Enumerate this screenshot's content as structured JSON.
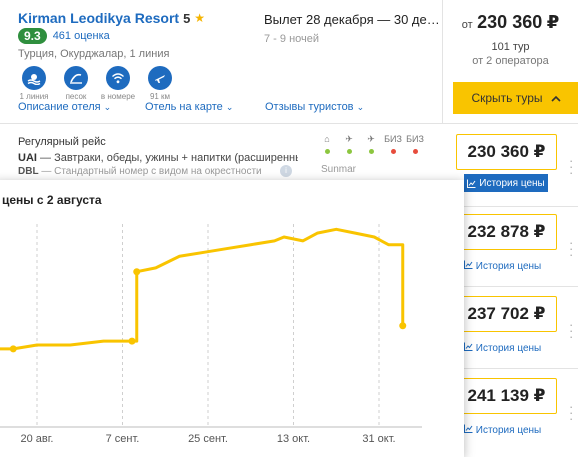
{
  "hotel": {
    "name": "Kirman Leodikya Resort",
    "stars": "5",
    "rating": "9.3",
    "rating_count": "461 оценка",
    "location": "Турция, Окурджалар, 1 линия",
    "amenities": [
      {
        "icon": "beach-line-icon",
        "label": "1 линия"
      },
      {
        "icon": "sand-icon",
        "label": "песок"
      },
      {
        "icon": "wifi-icon",
        "label": "в номере"
      },
      {
        "icon": "airplane-icon",
        "label": "91 км"
      }
    ],
    "links": {
      "description": "Описание отеля",
      "map": "Отель на карте",
      "reviews": "Отзывы туристов"
    }
  },
  "dates": {
    "main": "Вылет 28 декабря — 30 декабря",
    "nights": "7 - 9 ночей"
  },
  "price_block": {
    "from_label": "от",
    "price": "230 360",
    "currency": "₽",
    "tours": "101 тур",
    "operators": "от 2 оператора",
    "search_button": "Скрыть туры"
  },
  "tour_row": {
    "flight_type": "Регулярный рейс",
    "meal_code": "UAI",
    "meal_text": " — Завтраки, обеды, ужины + напитки (расширенный)",
    "room_code": "DBL",
    "room_text": " — Стандартный номер с видом на окрестности",
    "operator": "Sunmar",
    "status_labels": [
      "⌂",
      "✈",
      "✈",
      "БИЗ",
      "БИЗ"
    ],
    "status_colors": [
      "#8cc63f",
      "#8cc63f",
      "#8cc63f",
      "#e74c3c",
      "#e74c3c"
    ]
  },
  "prices": [
    "230 360 ₽",
    "232 878 ₽",
    "237 702 ₽",
    "241 139 ₽"
  ],
  "history_label": "История цены",
  "chart_data": {
    "type": "line",
    "title": "цены с 2 августа",
    "x_ticks": [
      "20 авг.",
      "7 сент.",
      "25 сент.",
      "13 окт.",
      "31 окт."
    ],
    "x": [
      "2 авг.",
      "3 авг.",
      "7 авг.",
      "11 авг.",
      "15 авг.",
      "20 авг.",
      "27 авг.",
      "3 сент.",
      "9 сент.",
      "10 сент.",
      "14 сент.",
      "19 сент.",
      "24 сент.",
      "29 сент.",
      "4 окт.",
      "9 окт.",
      "11 окт.",
      "15 окт.",
      "18 окт.",
      "22 окт.",
      "26 окт.",
      "30 окт.",
      "2 нояб.",
      "4 нояб.",
      "5 нояб."
    ],
    "values": [
      220000,
      227000,
      227000,
      228000,
      228000,
      228500,
      228500,
      229000,
      229000,
      238000,
      238500,
      240000,
      240500,
      241000,
      241500,
      242000,
      242500,
      242000,
      243000,
      243500,
      243000,
      242500,
      241500,
      241500,
      231000
    ],
    "point_labels_x": [
      "2 авг.",
      "15 авг.",
      "9 сент.",
      "10 сент.",
      "5 нояб."
    ],
    "color": "#f9c400",
    "grid": "vertical dashed"
  }
}
